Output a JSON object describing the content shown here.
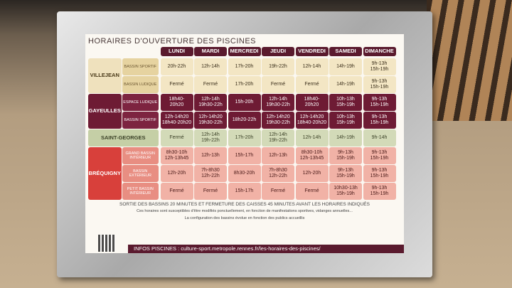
{
  "title": "HORAIRES D'OUVERTURE DES PISCINES",
  "days": [
    "LUNDI",
    "MARDI",
    "MERCREDI",
    "JEUDI",
    "VENDREDI",
    "SAMEDI",
    "DIMANCHE"
  ],
  "pools": [
    {
      "name": "VILLEJEAN",
      "rows": [
        {
          "name": "BASSIN SPORTIF",
          "hours": [
            "20h-22h",
            "12h-14h",
            "17h-20h",
            "19h-22h",
            "12h-14h",
            "14h-19h",
            "9h-13h\n15h-19h"
          ]
        },
        {
          "name": "BASSIN LUDIQUE",
          "hours": [
            "Fermé",
            "Fermé",
            "17h-20h",
            "Fermé",
            "Fermé",
            "14h-19h",
            "9h-13h\n15h-19h"
          ]
        }
      ]
    },
    {
      "name": "GAYEULLES",
      "rows": [
        {
          "name": "ESPACE LUDIQUE",
          "hours": [
            "18h40-\n20h20",
            "12h-14h\n19h30-22h",
            "15h-20h",
            "12h-14h\n19h30-22h",
            "18h40-\n20h20",
            "10h-13h\n15h-19h",
            "9h-13h\n15h-19h"
          ]
        },
        {
          "name": "BASSIN SPORTIF",
          "hours": [
            "12h-14h20\n18h40-20h20",
            "12h-14h20\n19h30-22h",
            "18h20-22h",
            "12h-14h20\n19h30-22h",
            "12h-14h20\n18h40-20h20",
            "10h-13h\n15h-19h",
            "9h-13h\n15h-19h"
          ]
        }
      ]
    },
    {
      "name": "SAINT-GEORGES",
      "rows": [
        {
          "hours": [
            "Fermé",
            "12h-14h\n19h-22h",
            "17h-20h",
            "12h-14h\n19h-22h",
            "12h-14h",
            "14h-19h",
            "9h-14h"
          ]
        }
      ]
    },
    {
      "name": "BRÉQUIGNY",
      "rows": [
        {
          "name": "GRAND BASSIN INTÉRIEUR",
          "hours": [
            "8h30-10h\n12h-13h45",
            "12h-13h",
            "15h-17h",
            "12h-13h",
            "8h30-10h\n12h-13h45",
            "9h-13h\n15h-19h",
            "9h-13h\n15h-19h"
          ]
        },
        {
          "name": "BASSIN EXTÉRIEUR",
          "hours": [
            "12h-20h",
            "7h-8h30\n12h-22h",
            "8h30-20h",
            "7h-8h30\n12h-22h",
            "12h-20h",
            "9h-13h\n15h-19h",
            "9h-13h\n15h-19h"
          ]
        },
        {
          "name": "PETIT BASSIN INTÉRIEUR",
          "hours": [
            "Fermé",
            "Fermé",
            "15h-17h",
            "Fermé",
            "Fermé",
            "10h30-13h\n15h-19h",
            "9h-13h\n15h-19h"
          ]
        }
      ]
    }
  ],
  "notes": [
    "SORTIE DES BASSINS 20 MINUTES ET FERMETURE DES CAISSES 45 MINUTES AVANT LES HORAIRES INDIQUÉS",
    "Ces horaires sont susceptibles d'être modifiés ponctuellement, en fonction de manifestations sportives, vidanges annuelles...",
    "La configuration des bassins évolue en fonction des publics accueillis"
  ],
  "footer": "INFOS PISCINES : culture-sport.metropole.rennes.fr/les-horaires-des-piscines/"
}
